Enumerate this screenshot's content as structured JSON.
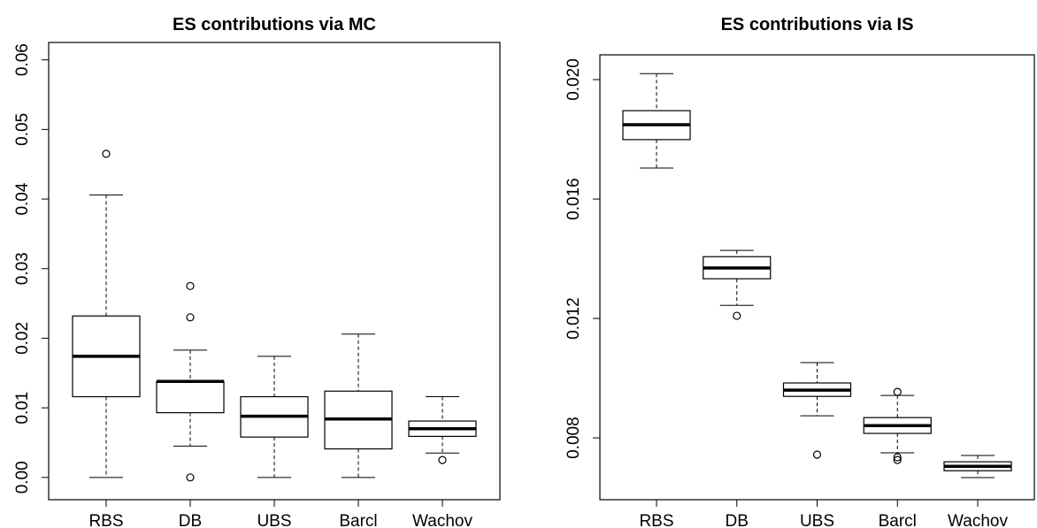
{
  "chart_data": [
    {
      "type": "box",
      "title": "ES contributions via MC",
      "categories": [
        "RBS",
        "DB",
        "UBS",
        "Barcl",
        "Wachov"
      ],
      "boxes": [
        {
          "min": 0,
          "q1": 0.0116,
          "median": 0.0174,
          "q3": 0.0232,
          "max": 0.0406,
          "outliers": [
            0.0465
          ]
        },
        {
          "min": 0.0045,
          "q1": 0.0093,
          "median": 0.0138,
          "q3": 0.0138,
          "max": 0.0183,
          "outliers": [
            0.0275,
            0.023,
            0
          ]
        },
        {
          "min": 0,
          "q1": 0.0058,
          "median": 0.0088,
          "q3": 0.0116,
          "max": 0.0174,
          "outliers": []
        },
        {
          "min": 0,
          "q1": 0.0041,
          "median": 0.0084,
          "q3": 0.0124,
          "max": 0.0206,
          "outliers": []
        },
        {
          "min": 0.0035,
          "q1": 0.0059,
          "median": 0.007,
          "q3": 0.0081,
          "max": 0.0116,
          "outliers": [
            0.0025
          ]
        }
      ],
      "ylim": [
        -0.0032,
        0.0625
      ],
      "yticks": [
        {
          "value": 0,
          "label": "0.00"
        },
        {
          "value": 0.01,
          "label": "0.01"
        },
        {
          "value": 0.02,
          "label": "0.02"
        },
        {
          "value": 0.03,
          "label": "0.03"
        },
        {
          "value": 0.04,
          "label": "0.04"
        },
        {
          "value": 0.05,
          "label": "0.05"
        },
        {
          "value": 0.06,
          "label": "0.06"
        }
      ]
    },
    {
      "type": "box",
      "title": "ES contributions via IS",
      "categories": [
        "RBS",
        "DB",
        "UBS",
        "Barcl",
        "Wachov"
      ],
      "boxes": [
        {
          "min": 0.01704,
          "q1": 0.01799,
          "median": 0.01849,
          "q3": 0.01896,
          "max": 0.0202,
          "outliers": []
        },
        {
          "min": 0.01244,
          "q1": 0.01333,
          "median": 0.01369,
          "q3": 0.01407,
          "max": 0.01428,
          "outliers": [
            0.01209
          ]
        },
        {
          "min": 0.00874,
          "q1": 0.00939,
          "median": 0.0096,
          "q3": 0.00984,
          "max": 0.01052,
          "outliers": [
            0.00744
          ]
        },
        {
          "min": 0.0075,
          "q1": 0.00815,
          "median": 0.00841,
          "q3": 0.00868,
          "max": 0.00942,
          "outliers": [
            0.00954,
            0.00735,
            0.00726
          ]
        },
        {
          "min": 0.00667,
          "q1": 0.0069,
          "median": 0.00705,
          "q3": 0.0072,
          "max": 0.00741,
          "outliers": []
        }
      ],
      "ylim": [
        0.00593,
        0.02083
      ],
      "yticks": [
        {
          "value": 0.008,
          "label": "0.008"
        },
        {
          "value": 0.012,
          "label": "0.012"
        },
        {
          "value": 0.016,
          "label": "0.016"
        },
        {
          "value": 0.02,
          "label": "0.020"
        }
      ]
    }
  ]
}
